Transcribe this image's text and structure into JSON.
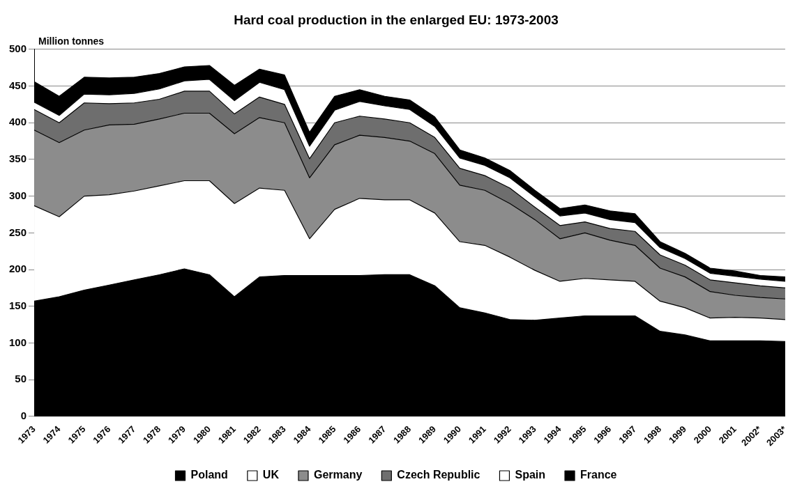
{
  "chart_data": {
    "type": "area",
    "title": "Hard coal production in the enlarged EU: 1973-2003",
    "ylabel": "Million tonnes",
    "categories": [
      "1973",
      "1974",
      "1975",
      "1976",
      "1977",
      "1978",
      "1979",
      "1980",
      "1981",
      "1982",
      "1983",
      "1984",
      "1985",
      "1986",
      "1987",
      "1988",
      "1989",
      "1990",
      "1991",
      "1992",
      "1993",
      "1994",
      "1995",
      "1996",
      "1997",
      "1998",
      "1999",
      "2000",
      "2001",
      "2002*",
      "2003*"
    ],
    "stacked": true,
    "series": [
      {
        "name": "Poland",
        "color": "#000000",
        "values": [
          157,
          163,
          172,
          179,
          186,
          193,
          201,
          193,
          163,
          190,
          192,
          192,
          192,
          192,
          193,
          193,
          178,
          148,
          141,
          132,
          131,
          134,
          137,
          137,
          137,
          116,
          111,
          103,
          103,
          103,
          102
        ]
      },
      {
        "name": "UK",
        "color": "#ffffff",
        "values": [
          130,
          109,
          128,
          123,
          121,
          121,
          120,
          128,
          127,
          121,
          116,
          50,
          90,
          105,
          102,
          102,
          99,
          90,
          92,
          85,
          68,
          50,
          51,
          49,
          47,
          41,
          37,
          31,
          32,
          31,
          30
        ]
      },
      {
        "name": "Germany",
        "color": "#8c8c8c",
        "values": [
          103,
          101,
          90,
          95,
          91,
          91,
          92,
          92,
          95,
          96,
          92,
          83,
          88,
          86,
          85,
          80,
          81,
          77,
          75,
          73,
          69,
          58,
          62,
          54,
          49,
          45,
          42,
          36,
          30,
          28,
          28
        ]
      },
      {
        "name": "Czech Republic",
        "color": "#6e6e6e",
        "values": [
          28,
          27,
          37,
          29,
          29,
          27,
          30,
          30,
          27,
          28,
          25,
          26,
          30,
          26,
          25,
          25,
          22,
          23,
          20,
          21,
          17,
          18,
          15,
          16,
          19,
          18,
          16,
          16,
          17,
          16,
          15
        ]
      },
      {
        "name": "Spain",
        "color": "#ffffff",
        "values": [
          10,
          10,
          12,
          12,
          13,
          14,
          14,
          16,
          18,
          20,
          20,
          17,
          17,
          20,
          18,
          18,
          15,
          14,
          14,
          14,
          14,
          13,
          12,
          12,
          12,
          10,
          9,
          9,
          9,
          9,
          9
        ]
      },
      {
        "name": "France",
        "color": "#000000",
        "values": [
          28,
          26,
          23,
          23,
          22,
          21,
          19,
          19,
          21,
          18,
          20,
          19,
          19,
          16,
          13,
          13,
          13,
          11,
          10,
          10,
          9,
          10,
          11,
          12,
          12,
          8,
          7,
          7,
          7,
          5,
          6
        ]
      }
    ],
    "ylim": [
      0,
      500
    ],
    "yticks": [
      0,
      50,
      100,
      150,
      200,
      250,
      300,
      350,
      400,
      450,
      500
    ],
    "grid": "y",
    "legend": "bottom"
  }
}
